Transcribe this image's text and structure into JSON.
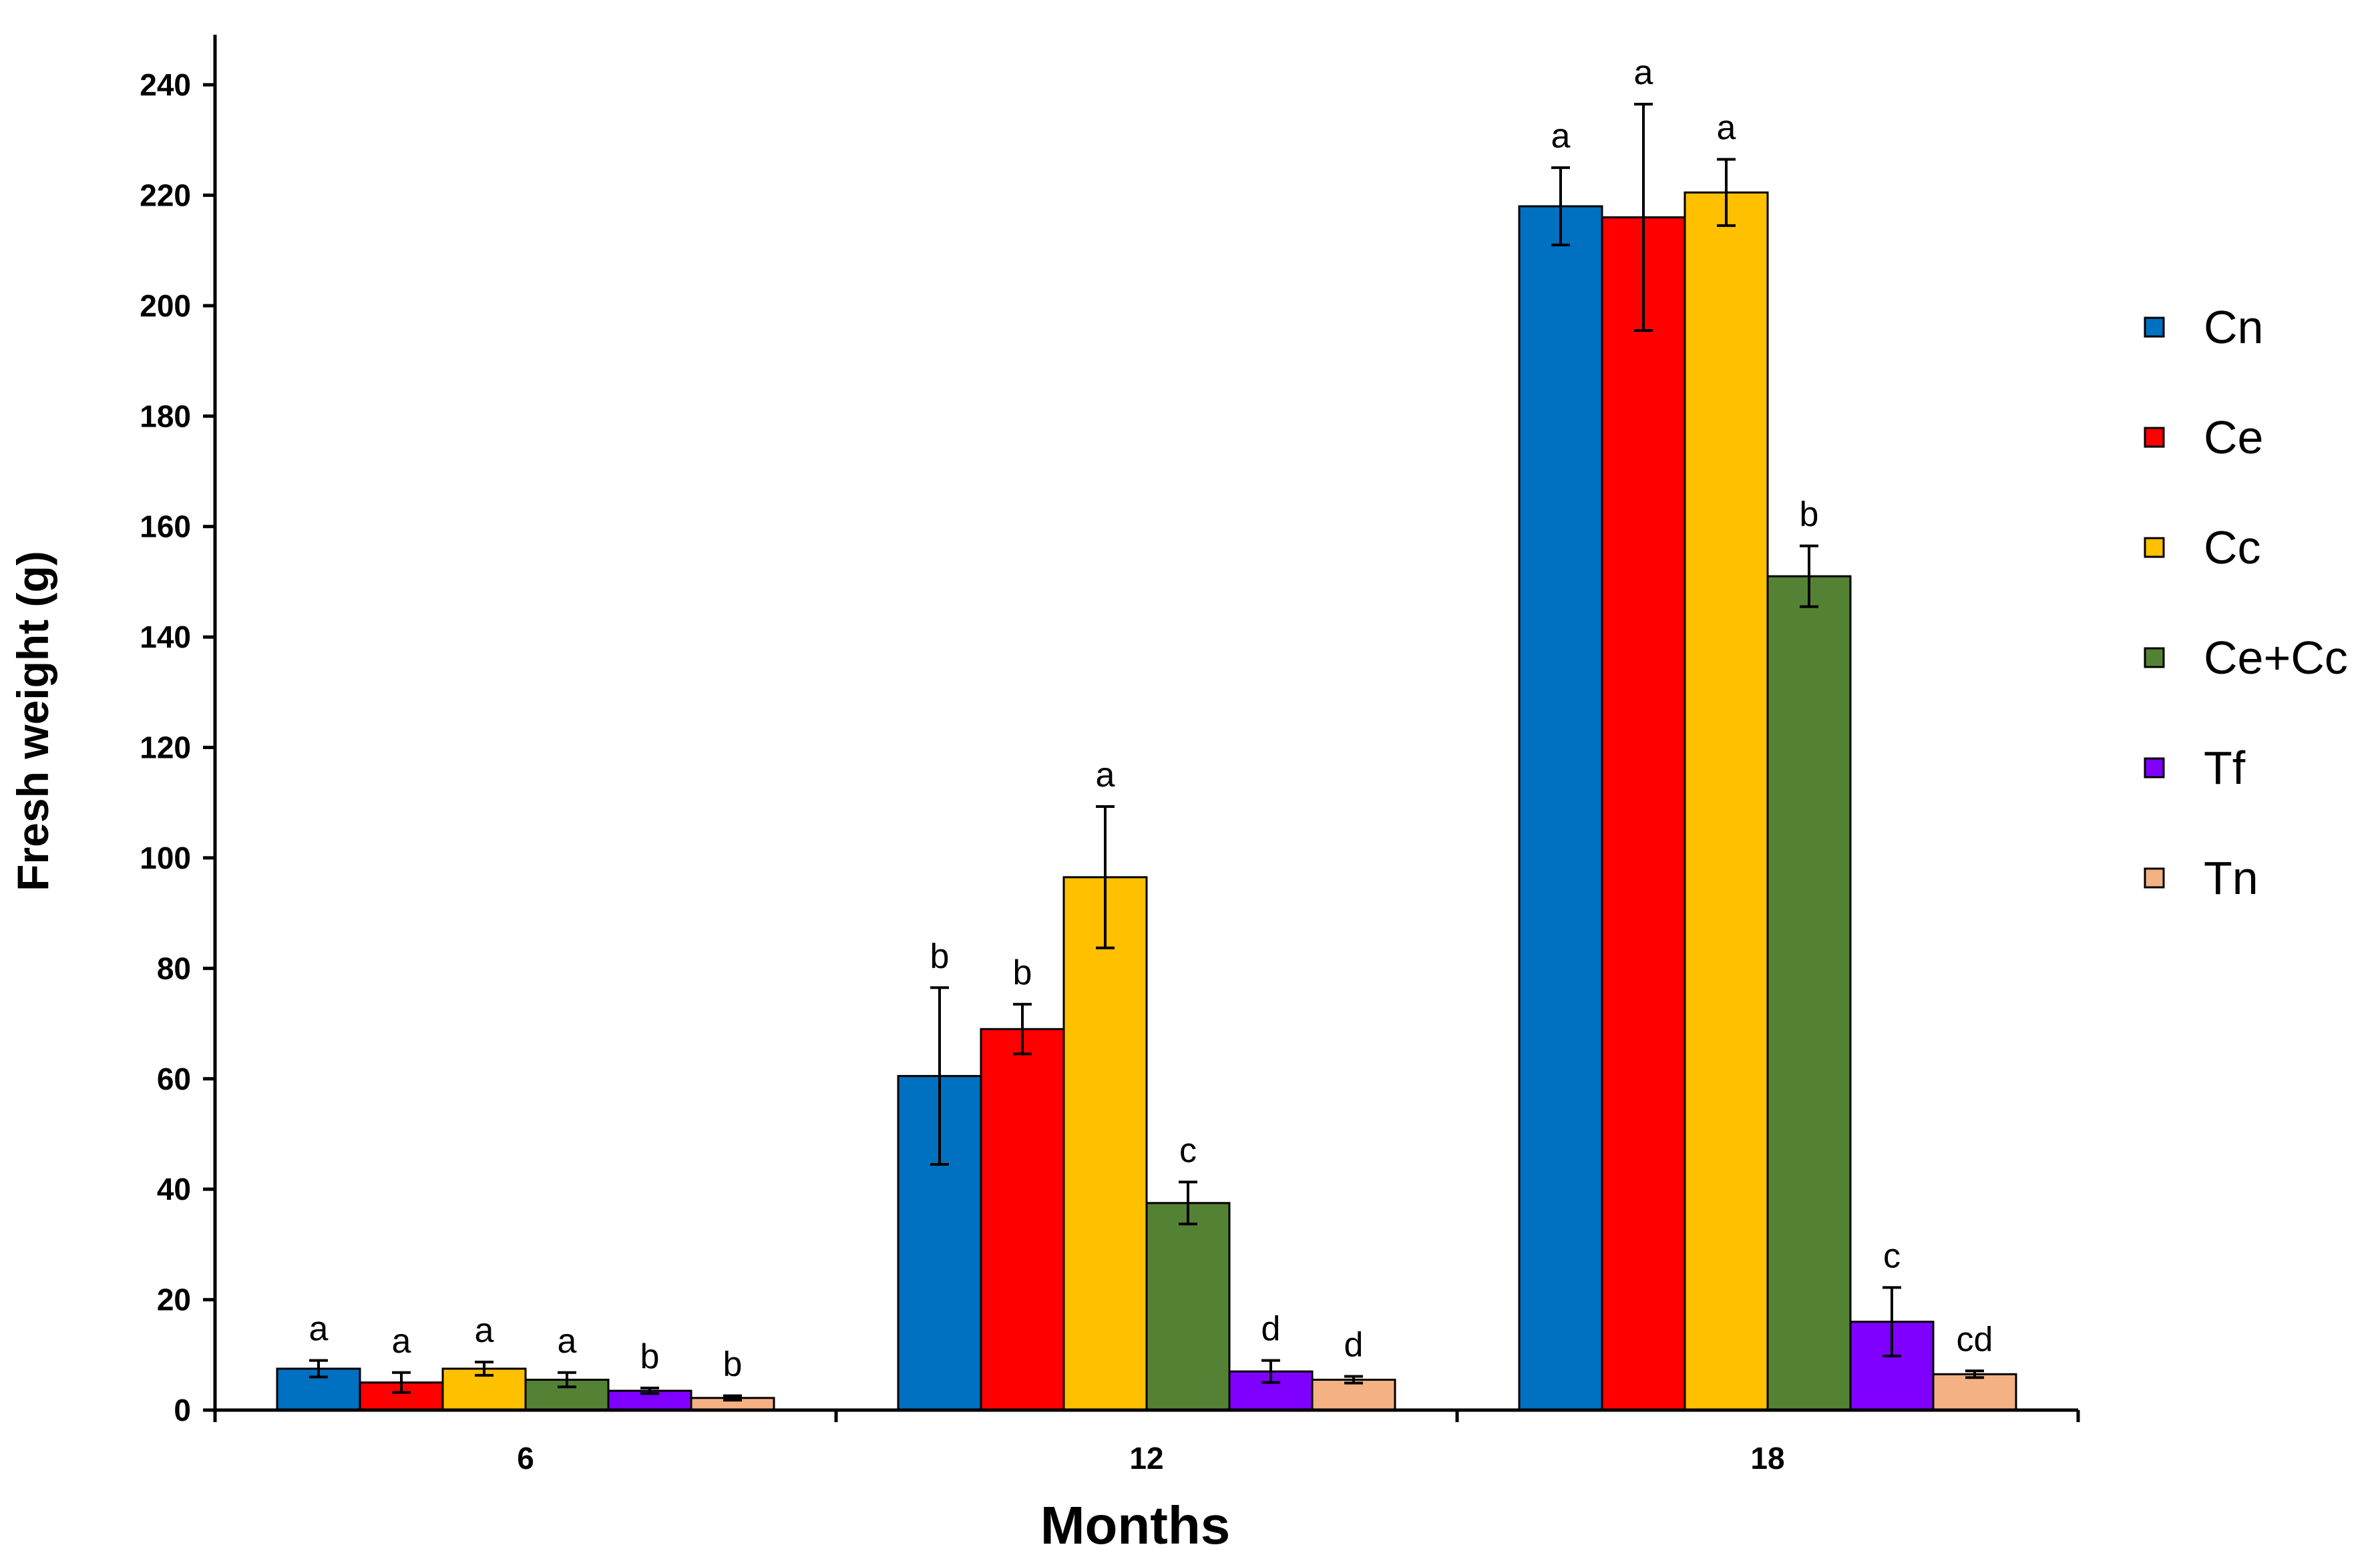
{
  "chart_data": {
    "type": "bar",
    "title": "",
    "xlabel": "Months",
    "ylabel": "Fresh weight (g)",
    "ylim": [
      0,
      240
    ],
    "yticks": [
      0,
      20,
      40,
      60,
      80,
      100,
      120,
      140,
      160,
      180,
      200,
      220,
      240
    ],
    "categories": [
      "6",
      "12",
      "18"
    ],
    "legend_position": "right",
    "grid": false,
    "series": [
      {
        "name": "Cn",
        "color": "#0070C0",
        "values": [
          7.5,
          60.5,
          218
        ],
        "errors": [
          1.5,
          16,
          7
        ],
        "letters": [
          "a",
          "b",
          "a"
        ]
      },
      {
        "name": "Ce",
        "color": "#FF0000",
        "values": [
          5,
          69,
          216
        ],
        "errors": [
          1.8,
          4.5,
          20.5
        ],
        "letters": [
          "a",
          "b",
          "a"
        ]
      },
      {
        "name": "Cc",
        "color": "#FFC000",
        "values": [
          7.5,
          96.5,
          220.5
        ],
        "errors": [
          1.2,
          12.8,
          6
        ],
        "letters": [
          "a",
          "a",
          "a"
        ]
      },
      {
        "name": "Ce+Cc",
        "color": "#548235",
        "values": [
          5.5,
          37.5,
          151
        ],
        "errors": [
          1.3,
          3.8,
          5.5
        ],
        "letters": [
          "a",
          "c",
          "b"
        ]
      },
      {
        "name": "Tf",
        "color": "#7F00FF",
        "values": [
          3.5,
          7,
          16
        ],
        "errors": [
          0.5,
          2,
          6.2
        ],
        "letters": [
          "b",
          "d",
          "c"
        ]
      },
      {
        "name": "Tn",
        "color": "#F4B183",
        "values": [
          2.2,
          5.5,
          6.5
        ],
        "errors": [
          0.4,
          0.6,
          0.6
        ],
        "letters": [
          "b",
          "d",
          "cd"
        ]
      }
    ]
  }
}
